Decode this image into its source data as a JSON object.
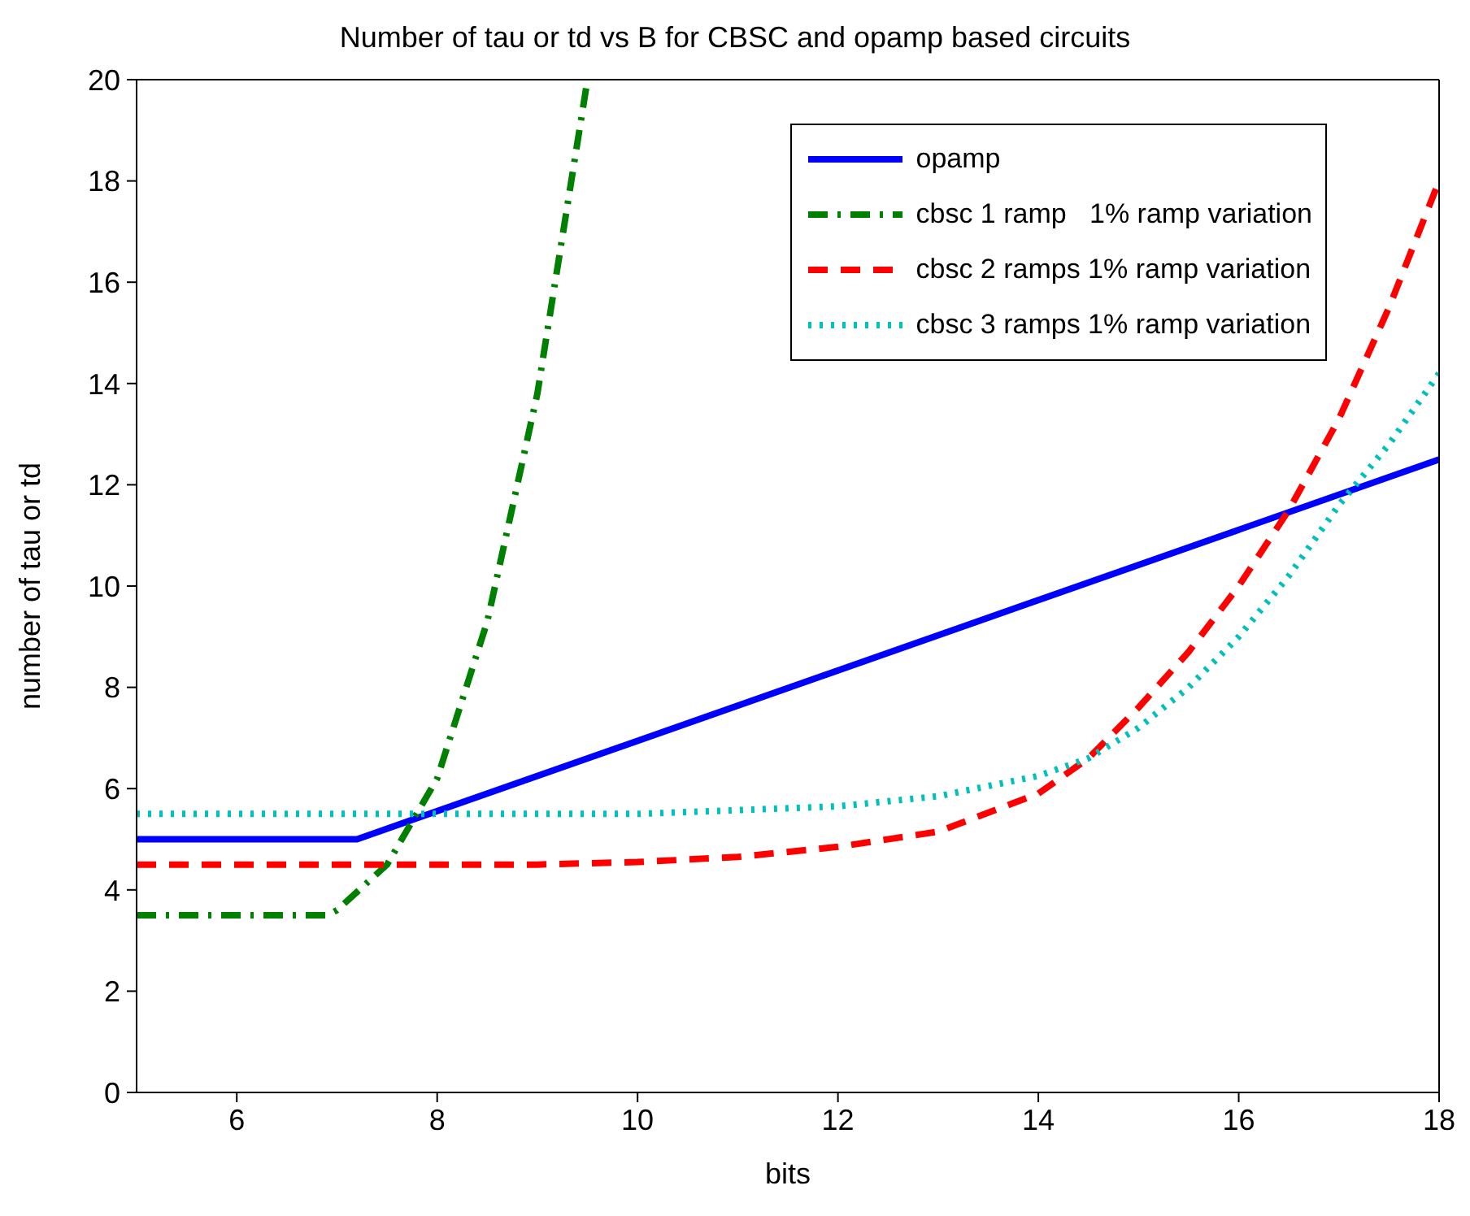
{
  "chart_data": {
    "type": "line",
    "title": "Number of tau or td vs B for CBSC and opamp based circuits",
    "xlabel": "bits",
    "ylabel": "number of tau or td",
    "xlim": [
      5,
      18
    ],
    "xticks": [
      6,
      8,
      10,
      12,
      14,
      16,
      18
    ],
    "ylim": [
      0,
      20
    ],
    "yticks": [
      0,
      2,
      4,
      6,
      8,
      10,
      12,
      14,
      16,
      18,
      20
    ],
    "grid": false,
    "legend": "top right",
    "marker": "none",
    "series": [
      {
        "name": "opamp",
        "color": "#0000ff",
        "line_style": "solid",
        "x": [
          5,
          7.2,
          18
        ],
        "values": [
          5,
          5,
          12.5
        ]
      },
      {
        "name": "cbsc 1 ramp   1% ramp variation",
        "color": "#008000",
        "line_style": "dashdot",
        "x": [
          5,
          6.9,
          7.0,
          7.5,
          8,
          8.5,
          9,
          9.5
        ],
        "values": [
          3.5,
          3.5,
          3.6,
          4.5,
          6.2,
          9.3,
          13.8,
          20
        ]
      },
      {
        "name": "cbsc 2 ramps 1% ramp variation",
        "color": "#ff0000",
        "line_style": "dashed",
        "x": [
          5,
          9,
          10,
          11,
          12,
          13,
          14,
          14.5,
          15,
          15.5,
          16,
          16.5,
          17,
          17.5,
          18
        ],
        "values": [
          4.5,
          4.5,
          4.55,
          4.65,
          4.85,
          5.15,
          5.9,
          6.6,
          7.6,
          8.7,
          10.0,
          11.5,
          13.3,
          15.5,
          18
        ]
      },
      {
        "name": "cbsc 3 ramps 1% ramp variation",
        "color": "#00bfbf",
        "line_style": "dotted",
        "x": [
          5,
          10,
          12,
          13,
          14,
          14.5,
          15,
          15.5,
          16,
          16.5,
          17,
          17.5,
          18
        ],
        "values": [
          5.5,
          5.5,
          5.65,
          5.85,
          6.25,
          6.6,
          7.2,
          8,
          9,
          10.2,
          11.6,
          12.8,
          14.2
        ]
      }
    ]
  }
}
